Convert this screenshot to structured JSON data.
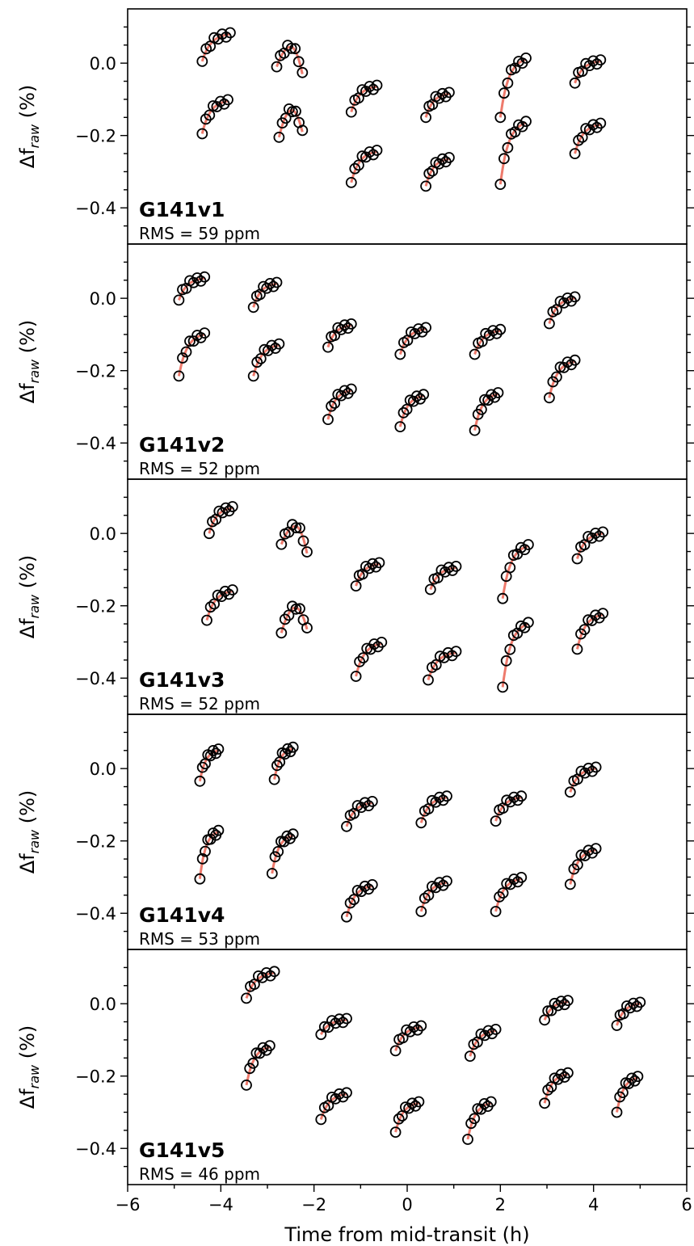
{
  "figure": {
    "xlabel": "Time from mid-transit (h)",
    "ylabel_main": "Δf",
    "ylabel_sub": "raw",
    "ylabel_unit": " (%)"
  },
  "chart_data": [
    {
      "type": "scatter",
      "title": "G141v1",
      "rms": "RMS = 59 ppm",
      "xlabel": "Time from mid-transit (h)",
      "ylabel": "Δf_raw (%)",
      "xlim": [
        -6,
        6
      ],
      "ylim": [
        -0.5,
        0.15
      ],
      "yticks": [
        0.0,
        -0.2,
        -0.4
      ],
      "orbits": [
        {
          "t0": -4.4,
          "t1": -3.8,
          "y0": 0.005,
          "y1": 0.08,
          "shape": "ramp",
          "n": 8
        },
        {
          "t0": -4.4,
          "t1": -3.85,
          "y0": -0.195,
          "y1": -0.105,
          "shape": "ramp",
          "n": 8
        },
        {
          "t0": -2.8,
          "t1": -2.25,
          "y0": -0.01,
          "y1": -0.03,
          "ypk": 0.045,
          "shape": "arch",
          "n": 8
        },
        {
          "t0": -2.75,
          "t1": -2.25,
          "y0": -0.205,
          "y1": -0.19,
          "ypk": -0.13,
          "shape": "arch",
          "n": 8
        },
        {
          "t0": -1.2,
          "t1": -0.65,
          "y0": -0.135,
          "y1": -0.065,
          "shape": "ramp",
          "n": 8
        },
        {
          "t0": -1.2,
          "t1": -0.65,
          "y0": -0.33,
          "y1": -0.245,
          "shape": "ramp",
          "n": 8
        },
        {
          "t0": 0.4,
          "t1": 0.9,
          "y0": -0.15,
          "y1": -0.085,
          "shape": "ramp",
          "n": 8
        },
        {
          "t0": 0.4,
          "t1": 0.9,
          "y0": -0.34,
          "y1": -0.265,
          "shape": "ramp",
          "n": 8
        },
        {
          "t0": 2.0,
          "t1": 2.55,
          "y0": -0.15,
          "y1": 0.01,
          "shape": "ramp",
          "n": 8
        },
        {
          "t0": 2.0,
          "t1": 2.55,
          "y0": -0.335,
          "y1": -0.165,
          "shape": "ramp",
          "n": 8
        },
        {
          "t0": 3.6,
          "t1": 4.15,
          "y0": -0.055,
          "y1": 0.005,
          "shape": "ramp",
          "n": 8
        },
        {
          "t0": 3.6,
          "t1": 4.15,
          "y0": -0.25,
          "y1": -0.17,
          "shape": "ramp",
          "n": 8
        }
      ]
    },
    {
      "type": "scatter",
      "title": "G141v2",
      "rms": "RMS = 52 ppm",
      "xlabel": "Time from mid-transit (h)",
      "ylabel": "Δf_raw (%)",
      "xlim": [
        -6,
        6
      ],
      "ylim": [
        -0.5,
        0.15
      ],
      "yticks": [
        0.0,
        -0.2,
        -0.4
      ],
      "orbits": [
        {
          "t0": -4.9,
          "t1": -4.35,
          "y0": -0.005,
          "y1": 0.055,
          "shape": "ramp",
          "n": 8
        },
        {
          "t0": -4.9,
          "t1": -4.35,
          "y0": -0.215,
          "y1": -0.1,
          "shape": "ramp",
          "n": 8
        },
        {
          "t0": -3.3,
          "t1": -2.8,
          "y0": -0.025,
          "y1": 0.04,
          "shape": "ramp",
          "n": 8
        },
        {
          "t0": -3.3,
          "t1": -2.75,
          "y0": -0.215,
          "y1": -0.13,
          "shape": "ramp",
          "n": 8
        },
        {
          "t0": -1.7,
          "t1": -1.2,
          "y0": -0.135,
          "y1": -0.075,
          "shape": "ramp",
          "n": 8
        },
        {
          "t0": -1.7,
          "t1": -1.2,
          "y0": -0.335,
          "y1": -0.255,
          "shape": "ramp",
          "n": 8
        },
        {
          "t0": -0.15,
          "t1": 0.4,
          "y0": -0.155,
          "y1": -0.085,
          "shape": "ramp",
          "n": 8
        },
        {
          "t0": -0.15,
          "t1": 0.35,
          "y0": -0.355,
          "y1": -0.27,
          "shape": "ramp",
          "n": 8
        },
        {
          "t0": 1.45,
          "t1": 2.0,
          "y0": -0.155,
          "y1": -0.09,
          "shape": "ramp",
          "n": 8
        },
        {
          "t0": 1.45,
          "t1": 1.95,
          "y0": -0.365,
          "y1": -0.265,
          "shape": "ramp",
          "n": 8
        },
        {
          "t0": 3.05,
          "t1": 3.6,
          "y0": -0.07,
          "y1": 0.0,
          "shape": "ramp",
          "n": 8
        },
        {
          "t0": 3.05,
          "t1": 3.6,
          "y0": -0.275,
          "y1": -0.175,
          "shape": "ramp",
          "n": 8
        }
      ]
    },
    {
      "type": "scatter",
      "title": "G141v3",
      "rms": "RMS = 52 ppm",
      "xlabel": "Time from mid-transit (h)",
      "ylabel": "Δf_raw (%)",
      "xlim": [
        -6,
        6
      ],
      "ylim": [
        -0.5,
        0.15
      ],
      "yticks": [
        0.0,
        -0.2,
        -0.4
      ],
      "orbits": [
        {
          "t0": -4.25,
          "t1": -3.75,
          "y0": 0.0,
          "y1": 0.07,
          "shape": "ramp",
          "n": 8
        },
        {
          "t0": -4.3,
          "t1": -3.75,
          "y0": -0.24,
          "y1": -0.16,
          "shape": "ramp",
          "n": 8
        },
        {
          "t0": -2.7,
          "t1": -2.15,
          "y0": -0.03,
          "y1": -0.055,
          "ypk": 0.02,
          "shape": "arch",
          "n": 8
        },
        {
          "t0": -2.7,
          "t1": -2.15,
          "y0": -0.275,
          "y1": -0.265,
          "ypk": -0.205,
          "shape": "arch",
          "n": 8
        },
        {
          "t0": -1.1,
          "t1": -0.6,
          "y0": -0.145,
          "y1": -0.085,
          "shape": "ramp",
          "n": 8
        },
        {
          "t0": -1.1,
          "t1": -0.55,
          "y0": -0.395,
          "y1": -0.305,
          "shape": "ramp",
          "n": 8
        },
        {
          "t0": 0.5,
          "t1": 1.05,
          "y0": -0.155,
          "y1": -0.095,
          "shape": "ramp",
          "n": 8
        },
        {
          "t0": 0.45,
          "t1": 1.05,
          "y0": -0.405,
          "y1": -0.33,
          "shape": "ramp",
          "n": 8
        },
        {
          "t0": 2.05,
          "t1": 2.6,
          "y0": -0.18,
          "y1": -0.035,
          "shape": "ramp",
          "n": 8
        },
        {
          "t0": 2.05,
          "t1": 2.6,
          "y0": -0.425,
          "y1": -0.25,
          "shape": "ramp",
          "n": 8
        },
        {
          "t0": 3.65,
          "t1": 4.2,
          "y0": -0.07,
          "y1": 0.0,
          "shape": "ramp",
          "n": 8
        },
        {
          "t0": 3.65,
          "t1": 4.2,
          "y0": -0.32,
          "y1": -0.225,
          "shape": "ramp",
          "n": 8
        }
      ]
    },
    {
      "type": "scatter",
      "title": "G141v4",
      "rms": "RMS = 53 ppm",
      "xlabel": "Time from mid-transit (h)",
      "ylabel": "Δf_raw (%)",
      "xlim": [
        -6,
        6
      ],
      "ylim": [
        -0.5,
        0.15
      ],
      "yticks": [
        0.0,
        -0.2,
        -0.4
      ],
      "orbits": [
        {
          "t0": -4.45,
          "t1": -4.05,
          "y0": -0.035,
          "y1": 0.05,
          "shape": "ramp",
          "n": 8
        },
        {
          "t0": -4.45,
          "t1": -4.05,
          "y0": -0.305,
          "y1": -0.175,
          "shape": "ramp",
          "n": 8
        },
        {
          "t0": -2.85,
          "t1": -2.45,
          "y0": -0.03,
          "y1": 0.055,
          "shape": "ramp",
          "n": 8
        },
        {
          "t0": -2.9,
          "t1": -2.45,
          "y0": -0.29,
          "y1": -0.185,
          "shape": "ramp",
          "n": 8
        },
        {
          "t0": -1.3,
          "t1": -0.75,
          "y0": -0.16,
          "y1": -0.095,
          "shape": "ramp",
          "n": 8
        },
        {
          "t0": -1.3,
          "t1": -0.75,
          "y0": -0.41,
          "y1": -0.325,
          "shape": "ramp",
          "n": 8
        },
        {
          "t0": 0.3,
          "t1": 0.85,
          "y0": -0.15,
          "y1": -0.08,
          "shape": "ramp",
          "n": 8
        },
        {
          "t0": 0.3,
          "t1": 0.85,
          "y0": -0.395,
          "y1": -0.315,
          "shape": "ramp",
          "n": 8
        },
        {
          "t0": 1.9,
          "t1": 2.45,
          "y0": -0.145,
          "y1": -0.08,
          "shape": "ramp",
          "n": 8
        },
        {
          "t0": 1.9,
          "t1": 2.45,
          "y0": -0.395,
          "y1": -0.305,
          "shape": "ramp",
          "n": 8
        },
        {
          "t0": 3.5,
          "t1": 4.05,
          "y0": -0.065,
          "y1": 0.0,
          "shape": "ramp",
          "n": 8
        },
        {
          "t0": 3.5,
          "t1": 4.05,
          "y0": -0.32,
          "y1": -0.225,
          "shape": "ramp",
          "n": 8
        }
      ]
    },
    {
      "type": "scatter",
      "title": "G141v5",
      "rms": "RMS = 46 ppm",
      "xlabel": "Time from mid-transit (h)",
      "ylabel": "Δf_raw (%)",
      "xlim": [
        -6,
        6
      ],
      "ylim": [
        -0.5,
        0.15
      ],
      "yticks": [
        0.0,
        -0.2,
        -0.4
      ],
      "xticks": [
        -6,
        -4,
        -2,
        0,
        2,
        4,
        6
      ],
      "orbits": [
        {
          "t0": -3.45,
          "t1": -2.85,
          "y0": 0.015,
          "y1": 0.085,
          "shape": "ramp",
          "n": 8
        },
        {
          "t0": -3.45,
          "t1": -2.95,
          "y0": -0.225,
          "y1": -0.12,
          "shape": "ramp",
          "n": 8
        },
        {
          "t0": -1.85,
          "t1": -1.3,
          "y0": -0.085,
          "y1": -0.045,
          "shape": "ramp",
          "n": 8
        },
        {
          "t0": -1.85,
          "t1": -1.3,
          "y0": -0.32,
          "y1": -0.25,
          "shape": "ramp",
          "n": 8
        },
        {
          "t0": -0.25,
          "t1": 0.3,
          "y0": -0.13,
          "y1": -0.065,
          "shape": "ramp",
          "n": 8
        },
        {
          "t0": -0.25,
          "t1": 0.25,
          "y0": -0.355,
          "y1": -0.275,
          "shape": "ramp",
          "n": 8
        },
        {
          "t0": 1.35,
          "t1": 1.9,
          "y0": -0.145,
          "y1": -0.075,
          "shape": "ramp",
          "n": 8
        },
        {
          "t0": 1.3,
          "t1": 1.8,
          "y0": -0.375,
          "y1": -0.275,
          "shape": "ramp",
          "n": 8
        },
        {
          "t0": 2.95,
          "t1": 3.45,
          "y0": -0.045,
          "y1": 0.005,
          "shape": "ramp",
          "n": 8
        },
        {
          "t0": 2.95,
          "t1": 3.45,
          "y0": -0.275,
          "y1": -0.195,
          "shape": "ramp",
          "n": 8
        },
        {
          "t0": 4.5,
          "t1": 5.0,
          "y0": -0.06,
          "y1": 0.0,
          "shape": "ramp",
          "n": 8
        },
        {
          "t0": 4.5,
          "t1": 4.95,
          "y0": -0.3,
          "y1": -0.205,
          "shape": "ramp",
          "n": 8
        }
      ]
    }
  ]
}
